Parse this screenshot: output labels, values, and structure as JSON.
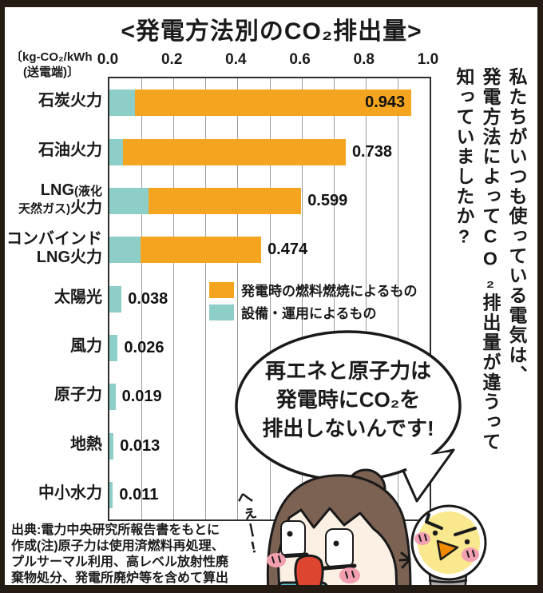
{
  "title": "<発電方法別のCO₂排出量>",
  "axis": {
    "unit_line1": "〔kg-CO₂/kWh",
    "unit_line2": "(送電端)〕",
    "ticks": [
      "0.0",
      "0.2",
      "0.4",
      "0.6",
      "0.8",
      "1.0"
    ]
  },
  "legend": {
    "items": [
      {
        "label": "発電時の燃料燃焼によるもの",
        "color": "#F4A41E"
      },
      {
        "label": "設備・運用によるもの",
        "color": "#8ECEC8"
      }
    ]
  },
  "side_note": {
    "lines": [
      "私たちがいつも使っている電気は、",
      "発電方法によってCO₂排出量が違うって",
      "知っていましたか?"
    ]
  },
  "speech_bubble": {
    "lines": [
      "再エネと原子力は",
      "発電時にCO₂を",
      "排出しないんです!"
    ]
  },
  "exclamation": "へぇー!",
  "source_note": {
    "lines": [
      "出典:電力中央研究所報告書をもとに",
      "作成(注)原子力は使用済燃料再処理、",
      "プルサーマル利用、高レベル放射性廃",
      "棄物処分、発電所廃炉等を含めて算出"
    ]
  },
  "colors": {
    "combustion": "#F4A41E",
    "equipment": "#8ECEC8",
    "frame": "#241B12",
    "grid": "#9A9A9A"
  },
  "chart_data": {
    "type": "bar",
    "orientation": "horizontal",
    "stacked": true,
    "title": "発電方法別のCO₂排出量",
    "xlabel": "kg-CO₂/kWh(送電端)",
    "xlim": [
      0,
      1.0
    ],
    "grid": true,
    "gridline_interval": 0.1,
    "tick_interval": 0.2,
    "legend_position": "inside-right",
    "categories": [
      "石炭火力",
      "石油火力",
      "LNG(液化天然ガス)火力",
      "コンバインドLNG火力",
      "太陽光",
      "風力",
      "原子力",
      "地熱",
      "中小水力"
    ],
    "series": [
      {
        "name": "発電時の燃料燃焼によるもの",
        "color": "#F4A41E",
        "values": [
          0.864,
          0.695,
          0.476,
          0.376,
          0,
          0,
          0,
          0,
          0
        ]
      },
      {
        "name": "設備・運用によるもの",
        "color": "#8ECEC8",
        "values": [
          0.079,
          0.043,
          0.123,
          0.098,
          0.038,
          0.026,
          0.019,
          0.013,
          0.011
        ]
      }
    ],
    "totals": [
      0.943,
      0.738,
      0.599,
      0.474,
      0.038,
      0.026,
      0.019,
      0.013,
      0.011
    ],
    "total_labels": [
      "0.943",
      "0.738",
      "0.599",
      "0.474",
      "0.038",
      "0.026",
      "0.019",
      "0.013",
      "0.011"
    ]
  },
  "category_label_lines": [
    [
      [
        {
          "t": "石炭火力",
          "s": false
        }
      ]
    ],
    [
      [
        {
          "t": "石油火力",
          "s": false
        }
      ]
    ],
    [
      [
        {
          "t": "LNG",
          "s": false
        },
        {
          "t": "(液化",
          "s": true
        }
      ],
      [
        {
          "t": "天然ガス)",
          "s": true
        },
        {
          "t": "火力",
          "s": false
        }
      ]
    ],
    [
      [
        {
          "t": "コンバインド",
          "s": false
        }
      ],
      [
        {
          "t": "LNG火力",
          "s": false
        }
      ]
    ],
    [
      [
        {
          "t": "太陽光",
          "s": false
        }
      ]
    ],
    [
      [
        {
          "t": "風力",
          "s": false
        }
      ]
    ],
    [
      [
        {
          "t": "原子力",
          "s": false
        }
      ]
    ],
    [
      [
        {
          "t": "地熱",
          "s": false
        }
      ]
    ],
    [
      [
        {
          "t": "中小水力",
          "s": false
        }
      ]
    ]
  ]
}
